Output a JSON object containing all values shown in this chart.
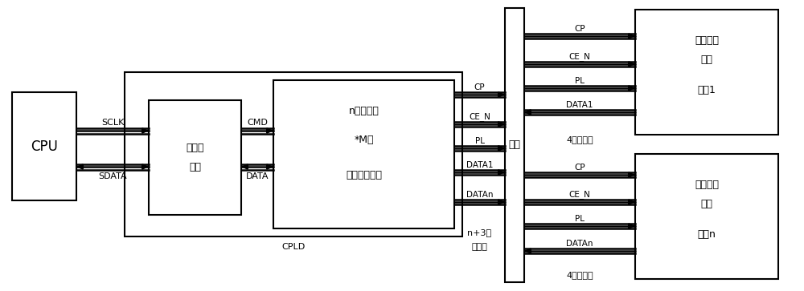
{
  "bg_color": "#ffffff",
  "line_color": "#000000",
  "cpu_label": "CPU",
  "codec_label1": "编解码",
  "codec_label2": "模块",
  "reg_label1": "n个寄存器",
  "reg_label2": "*M位",
  "reg_label3": "串并转换模块",
  "cpld_label": "CPLD",
  "backplane_label": "背板",
  "board1_label1": "并串转换",
  "board1_label2": "模块",
  "board1_label3": "单板1",
  "boardn_label1": "并串转换",
  "boardn_label2": "模块",
  "boardn_label3": "单板n",
  "sclk_label": "SCLK",
  "sdata_label": "SDATA",
  "cmd_label": "CMD",
  "data_label": "DATA",
  "np3_line1": "n+3根",
  "np3_line2": "信号线",
  "sig4_top": "4根信号线",
  "sig4_bot": "4根信号线",
  "left_signals": [
    "CP",
    "CE_N",
    "PL",
    "DATA1",
    "DATAn"
  ],
  "top_signals": [
    "CP",
    "CE_N",
    "PL",
    "DATA1"
  ],
  "bottom_signals": [
    "CP",
    "CE_N",
    "PL",
    "DATAn"
  ],
  "font_size_main": 9,
  "font_size_label": 8,
  "font_size_sig": 7.5
}
